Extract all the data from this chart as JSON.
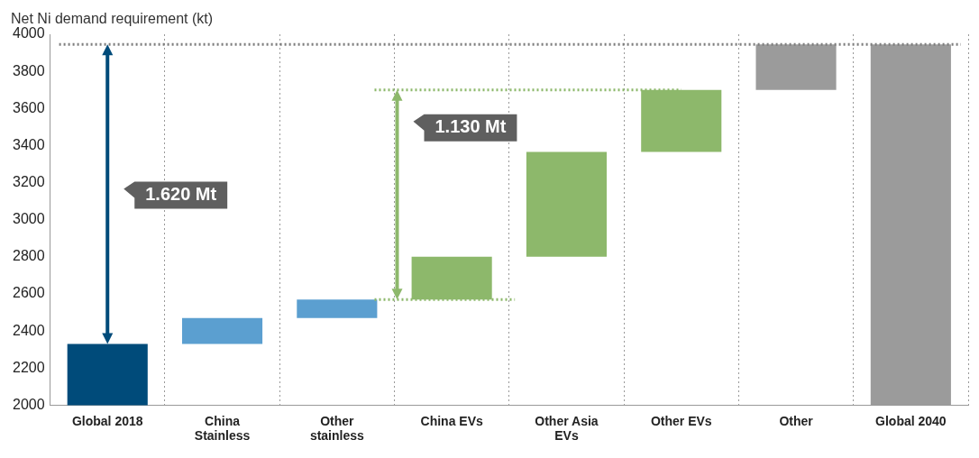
{
  "chart_data": {
    "type": "bar",
    "ylabel": "Net Ni demand requirement (kt)",
    "categories": [
      "Global 2018",
      "China\nStainless",
      "Other\nstainless",
      "China EVs",
      "Other Asia\nEVs",
      "Other EVs",
      "Other",
      "Global 2040"
    ],
    "values": [
      2330,
      140,
      100,
      230,
      565,
      335,
      245,
      3945
    ],
    "base": [
      null,
      2330,
      2470,
      2570,
      2800,
      3365,
      3700,
      null
    ],
    "colors": [
      "#004b7a",
      "#5b9fd0",
      "#5b9fd0",
      "#8db86b",
      "#8db86b",
      "#8db86b",
      "#9b9b9b",
      "#9b9b9b"
    ],
    "ylim": [
      2000,
      4000
    ],
    "yticks": [
      2000,
      2200,
      2400,
      2600,
      2800,
      3000,
      3200,
      3400,
      3600,
      3800,
      4000
    ],
    "grid": "x",
    "legend": false,
    "ref_lines": [
      {
        "axis": "y",
        "value": 3945,
        "color": "#7f7f7f",
        "line_style": "dotted"
      },
      {
        "axis": "y",
        "value": 3700,
        "color": "#8db86b",
        "line_style": "dotted"
      },
      {
        "axis": "y",
        "value": 2570,
        "color": "#8db86b",
        "line_style": "dotted"
      }
    ],
    "annotations": [
      "1.620 Mt",
      "1.130 Mt"
    ]
  }
}
